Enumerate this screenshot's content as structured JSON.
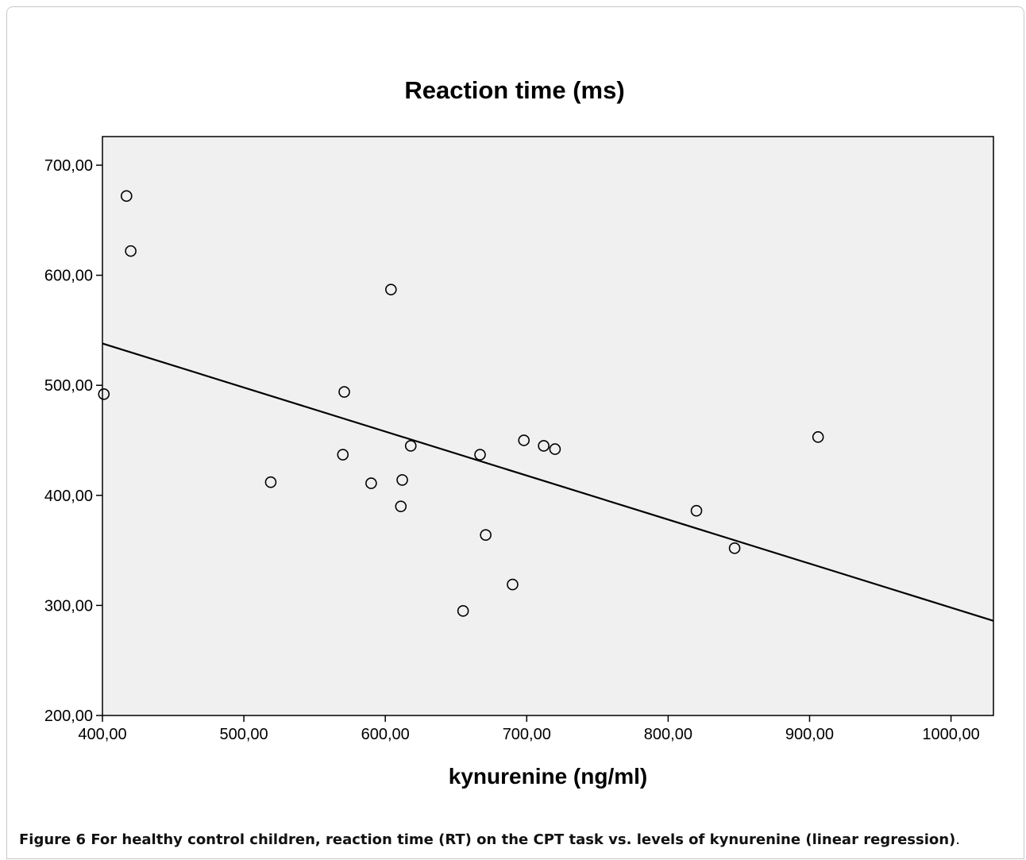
{
  "caption": {
    "label": "Figure 6",
    "text": " For healthy control children, reaction time (RT) on the CPT task vs. levels of kynurenine (linear regression)",
    "end": "."
  },
  "chart_data": {
    "type": "scatter",
    "title": "Reaction time (ms)",
    "xlabel": "kynurenine (ng/ml)",
    "ylabel": "",
    "xlim": [
      400,
      1030
    ],
    "ylim": [
      200,
      726
    ],
    "xticks": [
      400,
      500,
      600,
      700,
      800,
      900,
      1000
    ],
    "yticks": [
      200,
      300,
      400,
      500,
      600,
      700
    ],
    "xtick_labels": [
      "400,00",
      "500,00",
      "600,00",
      "700,00",
      "800,00",
      "900,00",
      "1000,00"
    ],
    "ytick_labels": [
      "200,00",
      "300,00",
      "400,00",
      "500,00",
      "600,00",
      "700,00"
    ],
    "grid": false,
    "points": [
      {
        "x": 401,
        "y": 492
      },
      {
        "x": 417,
        "y": 672
      },
      {
        "x": 420,
        "y": 622
      },
      {
        "x": 519,
        "y": 412
      },
      {
        "x": 570,
        "y": 437
      },
      {
        "x": 571,
        "y": 494
      },
      {
        "x": 590,
        "y": 411
      },
      {
        "x": 604,
        "y": 587
      },
      {
        "x": 611,
        "y": 390
      },
      {
        "x": 612,
        "y": 414
      },
      {
        "x": 618,
        "y": 445
      },
      {
        "x": 655,
        "y": 295
      },
      {
        "x": 667,
        "y": 437
      },
      {
        "x": 671,
        "y": 364
      },
      {
        "x": 690,
        "y": 319
      },
      {
        "x": 698,
        "y": 450
      },
      {
        "x": 712,
        "y": 445
      },
      {
        "x": 720,
        "y": 442
      },
      {
        "x": 820,
        "y": 386
      },
      {
        "x": 847,
        "y": 352
      },
      {
        "x": 906,
        "y": 453
      }
    ],
    "regression_line": {
      "x": [
        400,
        1030
      ],
      "y": [
        538,
        286
      ]
    },
    "colors": {
      "plot_background": "#f0f0f0",
      "marker": "#000000",
      "line": "#000000"
    }
  }
}
